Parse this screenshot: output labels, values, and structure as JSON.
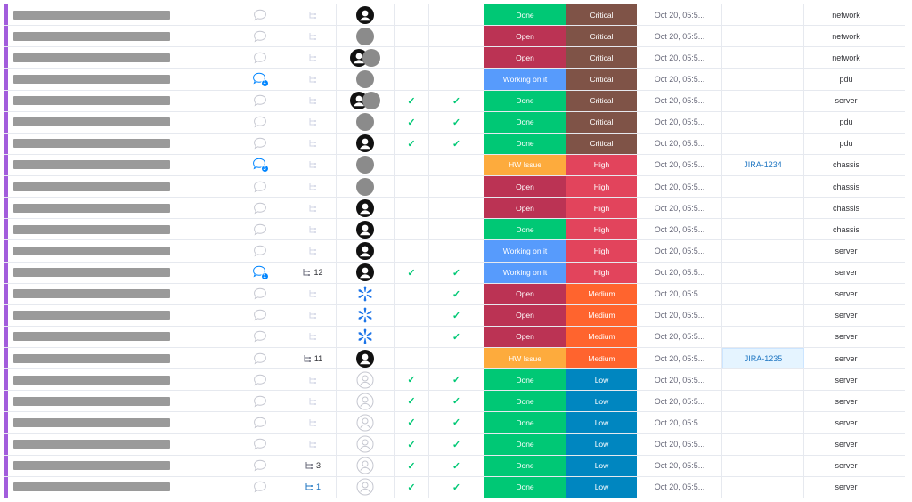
{
  "colors": {
    "Done": "#00c875",
    "Open": "#bb3354",
    "Working on it": "#579bfc",
    "HW Issue": "#fdab3d",
    "Critical": "#7f5347",
    "High": "#e2445c",
    "Medium": "#ff642e",
    "Low": "#0086c0"
  },
  "rows": [
    {
      "update": "none",
      "sub": "",
      "owner": "person",
      "c1": "",
      "c2": "",
      "status": "Done",
      "priority": "Critical",
      "date": "Oct 20, 05:5...",
      "jira": "",
      "type": "network"
    },
    {
      "update": "none",
      "sub": "",
      "owner": "grey",
      "c1": "",
      "c2": "",
      "status": "Open",
      "priority": "Critical",
      "date": "Oct 20, 05:5...",
      "jira": "",
      "type": "network"
    },
    {
      "update": "none",
      "sub": "",
      "owner": "person-grey",
      "c1": "",
      "c2": "",
      "status": "Open",
      "priority": "Critical",
      "date": "Oct 20, 05:5...",
      "jira": "",
      "type": "network"
    },
    {
      "update": "badge",
      "badge": "1",
      "sub": "",
      "owner": "grey",
      "c1": "",
      "c2": "",
      "status": "Working on it",
      "priority": "Critical",
      "date": "Oct 20, 05:5...",
      "jira": "",
      "type": "pdu"
    },
    {
      "update": "none",
      "sub": "",
      "owner": "person-grey",
      "c1": "✓",
      "c2": "✓",
      "status": "Done",
      "priority": "Critical",
      "date": "Oct 20, 05:5...",
      "jira": "",
      "type": "server"
    },
    {
      "update": "none",
      "sub": "",
      "owner": "grey",
      "c1": "✓",
      "c2": "✓",
      "status": "Done",
      "priority": "Critical",
      "date": "Oct 20, 05:5...",
      "jira": "",
      "type": "pdu"
    },
    {
      "update": "none",
      "sub": "",
      "owner": "person",
      "c1": "✓",
      "c2": "✓",
      "status": "Done",
      "priority": "Critical",
      "date": "Oct 20, 05:5...",
      "jira": "",
      "type": "pdu"
    },
    {
      "update": "badge",
      "badge": "3",
      "sub": "",
      "owner": "grey",
      "c1": "",
      "c2": "",
      "status": "HW Issue",
      "priority": "High",
      "date": "Oct 20, 05:5...",
      "jira": "JIRA-1234",
      "type": "chassis"
    },
    {
      "update": "none",
      "sub": "",
      "owner": "grey",
      "c1": "",
      "c2": "",
      "status": "Open",
      "priority": "High",
      "date": "Oct 20, 05:5...",
      "jira": "",
      "type": "chassis"
    },
    {
      "update": "none",
      "sub": "",
      "owner": "person",
      "c1": "",
      "c2": "",
      "status": "Open",
      "priority": "High",
      "date": "Oct 20, 05:5...",
      "jira": "",
      "type": "chassis"
    },
    {
      "update": "none",
      "sub": "",
      "owner": "person",
      "c1": "",
      "c2": "",
      "status": "Done",
      "priority": "High",
      "date": "Oct 20, 05:5...",
      "jira": "",
      "type": "chassis"
    },
    {
      "update": "none",
      "sub": "",
      "owner": "person",
      "c1": "",
      "c2": "",
      "status": "Working on it",
      "priority": "High",
      "date": "Oct 20, 05:5...",
      "jira": "",
      "type": "server"
    },
    {
      "update": "badge",
      "badge": "1",
      "sub": "12",
      "owner": "person",
      "c1": "✓",
      "c2": "✓",
      "status": "Working on it",
      "priority": "High",
      "date": "Oct 20, 05:5...",
      "jira": "",
      "type": "server"
    },
    {
      "update": "none",
      "sub": "",
      "owner": "snowflake",
      "c1": "",
      "c2": "✓",
      "status": "Open",
      "priority": "Medium",
      "date": "Oct 20, 05:5...",
      "jira": "",
      "type": "server"
    },
    {
      "update": "none",
      "sub": "",
      "owner": "snowflake",
      "c1": "",
      "c2": "✓",
      "status": "Open",
      "priority": "Medium",
      "date": "Oct 20, 05:5...",
      "jira": "",
      "type": "server"
    },
    {
      "update": "none",
      "sub": "",
      "owner": "snowflake",
      "c1": "",
      "c2": "✓",
      "status": "Open",
      "priority": "Medium",
      "date": "Oct 20, 05:5...",
      "jira": "",
      "type": "server"
    },
    {
      "update": "none",
      "sub": "11",
      "owner": "person",
      "c1": "",
      "c2": "",
      "status": "HW Issue",
      "priority": "Medium",
      "date": "Oct 20, 05:5...",
      "jira": "JIRA-1235",
      "jira_hl": true,
      "type": "server"
    },
    {
      "update": "none",
      "sub": "",
      "owner": "empty",
      "c1": "✓",
      "c2": "✓",
      "status": "Done",
      "priority": "Low",
      "date": "Oct 20, 05:5...",
      "jira": "",
      "type": "server"
    },
    {
      "update": "none",
      "sub": "",
      "owner": "empty",
      "c1": "✓",
      "c2": "✓",
      "status": "Done",
      "priority": "Low",
      "date": "Oct 20, 05:5...",
      "jira": "",
      "type": "server"
    },
    {
      "update": "none",
      "sub": "",
      "owner": "empty",
      "c1": "✓",
      "c2": "✓",
      "status": "Done",
      "priority": "Low",
      "date": "Oct 20, 05:5...",
      "jira": "",
      "type": "server"
    },
    {
      "update": "none",
      "sub": "",
      "owner": "empty",
      "c1": "✓",
      "c2": "✓",
      "status": "Done",
      "priority": "Low",
      "date": "Oct 20, 05:5...",
      "jira": "",
      "type": "server"
    },
    {
      "update": "none",
      "sub": "3",
      "owner": "empty",
      "c1": "✓",
      "c2": "✓",
      "status": "Done",
      "priority": "Low",
      "date": "Oct 20, 05:5...",
      "jira": "",
      "type": "server"
    },
    {
      "update": "none",
      "sub": "1",
      "sub_blue": true,
      "owner": "empty",
      "c1": "✓",
      "c2": "✓",
      "status": "Done",
      "priority": "Low",
      "date": "Oct 20, 05:5...",
      "jira": "",
      "type": "server"
    }
  ]
}
